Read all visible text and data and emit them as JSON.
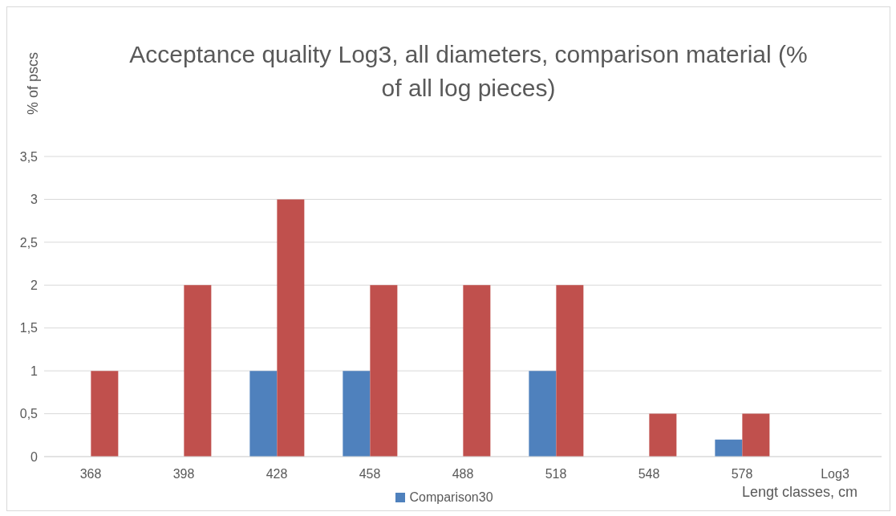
{
  "chart_data": {
    "type": "bar",
    "title": "Acceptance quality Log3, all diameters, comparison material (% of all log pieces)",
    "ylabel": "% of pscs",
    "xlabel": "Lengt classes, cm",
    "categories": [
      "368",
      "398",
      "428",
      "458",
      "488",
      "518",
      "548",
      "578",
      "Log3"
    ],
    "series": [
      {
        "name": "Comparison30",
        "color": "#4f81bd",
        "values": [
          0,
          0,
          1,
          1,
          0,
          1,
          0,
          0.2,
          0
        ]
      },
      {
        "color": "#c0504d",
        "values": [
          1,
          2,
          3,
          2,
          2,
          2,
          0.5,
          0.5,
          0
        ]
      }
    ],
    "ylim": [
      0,
      3.5
    ],
    "yticks": [
      0,
      {
        "value": 0.5,
        "label": "0,5"
      },
      1,
      {
        "value": 1.5,
        "label": "1,5"
      },
      2,
      {
        "value": 2.5,
        "label": "2,5"
      },
      3,
      {
        "value": 3.5,
        "label": "3,5"
      }
    ],
    "grid": "y",
    "legend": "bottom"
  }
}
